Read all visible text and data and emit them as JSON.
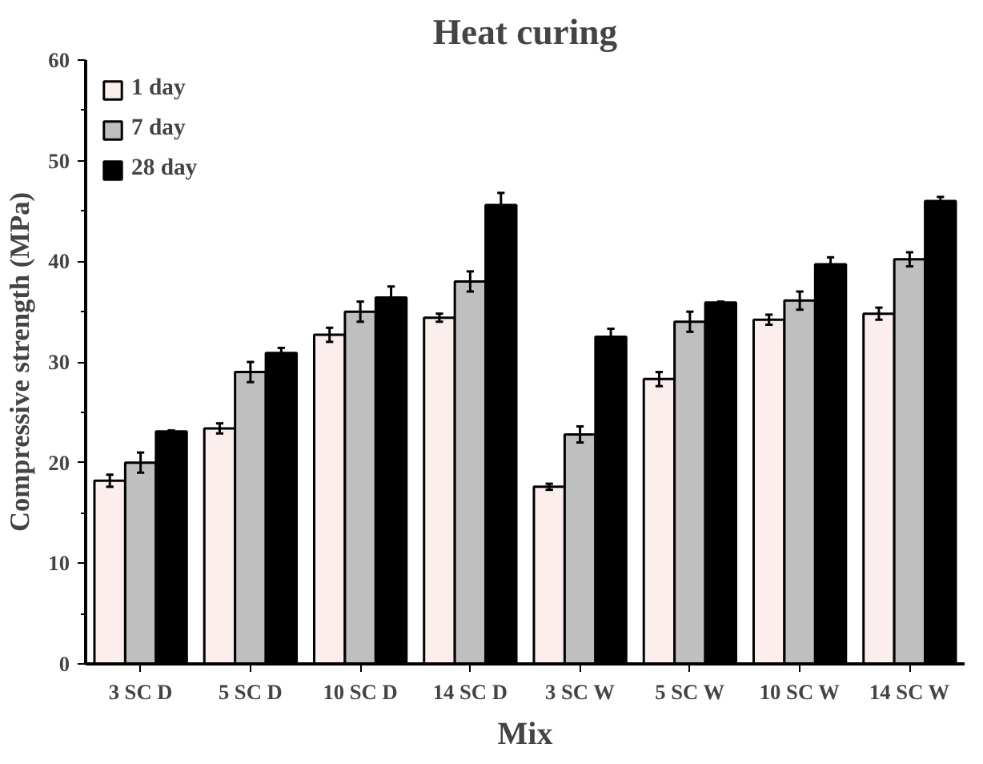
{
  "chart_data": {
    "type": "bar",
    "title": "Heat curing",
    "xlabel": "Mix",
    "ylabel": "Compressive strength (MPa)",
    "categories": [
      "3 SC D",
      "5 SC D",
      "10 SC D",
      "14 SC D",
      "3 SC W",
      "5 SC W",
      "10 SC W",
      "14 SC W"
    ],
    "series": [
      {
        "name": "1 day",
        "color": "#fdeeee",
        "values": [
          18.2,
          23.4,
          32.7,
          34.4,
          17.6,
          28.3,
          34.2,
          34.8
        ],
        "errors": [
          0.6,
          0.5,
          0.7,
          0.4,
          0.3,
          0.7,
          0.5,
          0.6
        ]
      },
      {
        "name": "7 day",
        "color": "#bfbfbf",
        "values": [
          20.0,
          29.0,
          35.0,
          38.0,
          22.8,
          34.0,
          36.1,
          40.2
        ],
        "errors": [
          1.0,
          1.0,
          1.0,
          1.0,
          0.8,
          1.0,
          0.9,
          0.7
        ]
      },
      {
        "name": "28 day",
        "color": "#000000",
        "values": [
          23.1,
          30.9,
          36.4,
          45.6,
          32.5,
          35.9,
          39.7,
          46.0
        ],
        "errors": [
          0.1,
          0.5,
          1.1,
          1.2,
          0.8,
          0.1,
          0.7,
          0.4
        ]
      }
    ],
    "ylim": [
      0,
      60
    ],
    "yticks": [
      0,
      10,
      20,
      30,
      40,
      50,
      60
    ],
    "grid": false,
    "legend": "top left"
  }
}
